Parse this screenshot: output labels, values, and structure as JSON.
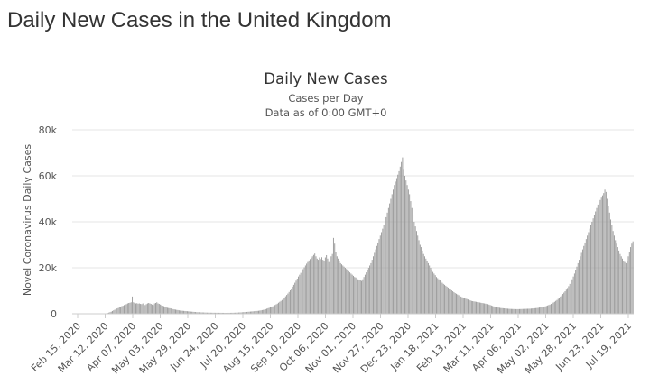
{
  "page": {
    "heading": "Daily New Cases in the United Kingdom"
  },
  "chart_data": {
    "type": "bar",
    "title": "Daily New Cases",
    "subtitle_lines": [
      "Cases per Day",
      "Data as of 0:00 GMT+0"
    ],
    "ylabel": "Novel Coronavirus Daily Cases",
    "xlabel": "",
    "ylim": [
      0,
      80000
    ],
    "yticks": [
      0,
      20000,
      40000,
      60000,
      80000
    ],
    "ytick_labels": [
      "0",
      "20k",
      "40k",
      "60k",
      "80k"
    ],
    "xtick_labels": [
      "Feb 15, 2020",
      "Mar 12, 2020",
      "Apr 07, 2020",
      "May 03, 2020",
      "May 29, 2020",
      "Jun 24, 2020",
      "Jul 20, 2020",
      "Aug 15, 2020",
      "Sep 10, 2020",
      "Oct 06, 2020",
      "Nov 01, 2020",
      "Nov 27, 2020",
      "Dec 23, 2020",
      "Jan 18, 2021",
      "Feb 13, 2021",
      "Mar 11, 2021",
      "Apr 06, 2021",
      "May 02, 2021",
      "May 28, 2021",
      "Jun 23, 2021",
      "Jul 19, 2021"
    ],
    "grid": true,
    "legend": false,
    "bar_color": "#999999",
    "x_start": "2020-02-15",
    "x_end": "2021-08-05",
    "values": [
      0,
      0,
      0,
      0,
      0,
      0,
      0,
      0,
      0,
      0,
      0,
      0,
      0,
      0,
      0,
      0,
      0,
      0,
      0,
      0,
      0,
      0,
      0,
      0,
      0,
      0,
      0,
      100,
      150,
      200,
      300,
      500,
      700,
      900,
      1200,
      1500,
      1800,
      2000,
      2300,
      2500,
      2800,
      3000,
      3300,
      3500,
      3800,
      4000,
      4200,
      4500,
      4700,
      4800,
      5000,
      7500,
      5000,
      4700,
      4500,
      4600,
      4400,
      4500,
      4300,
      4200,
      4500,
      4000,
      3800,
      4200,
      4500,
      4700,
      4500,
      4300,
      4000,
      3800,
      4500,
      4700,
      5000,
      4500,
      4300,
      4000,
      3700,
      3500,
      3300,
      3000,
      2800,
      2600,
      2500,
      2400,
      2300,
      2100,
      2000,
      1900,
      1800,
      1700,
      1600,
      1500,
      1400,
      1350,
      1300,
      1250,
      1200,
      1150,
      1100,
      1050,
      1000,
      950,
      900,
      850,
      800,
      750,
      700,
      680,
      650,
      630,
      600,
      580,
      560,
      540,
      520,
      500,
      490,
      480,
      470,
      460,
      450,
      450,
      440,
      440,
      430,
      430,
      420,
      420,
      410,
      410,
      400,
      400,
      400,
      410,
      410,
      420,
      430,
      440,
      450,
      470,
      490,
      510,
      540,
      570,
      600,
      640,
      680,
      720,
      760,
      800,
      850,
      900,
      950,
      1000,
      1050,
      1100,
      1150,
      1200,
      1250,
      1300,
      1400,
      1500,
      1600,
      1700,
      1800,
      2000,
      2200,
      2400,
      2600,
      2800,
      3000,
      3200,
      3500,
      3800,
      4100,
      4400,
      4800,
      5200,
      5600,
      6000,
      6500,
      7000,
      7600,
      8200,
      8800,
      9500,
      10200,
      11000,
      11800,
      12600,
      13500,
      14400,
      15300,
      16200,
      17000,
      17800,
      18600,
      19400,
      20200,
      21000,
      21800,
      22500,
      23200,
      23800,
      24400,
      25000,
      25600,
      26200,
      25000,
      24000,
      23500,
      24500,
      23800,
      24600,
      23500,
      22800,
      24500,
      25500,
      24000,
      22500,
      23500,
      25000,
      26000,
      33000,
      30500,
      27000,
      25000,
      24000,
      23000,
      22000,
      21500,
      21000,
      20500,
      20000,
      19500,
      19000,
      18500,
      18000,
      17500,
      17000,
      16500,
      16000,
      15800,
      15500,
      15000,
      14700,
      14500,
      14300,
      15000,
      16000,
      17000,
      18000,
      19000,
      20000,
      21000,
      22000,
      23500,
      25000,
      26500,
      28000,
      29500,
      31000,
      32500,
      34000,
      35500,
      37000,
      38500,
      40000,
      42000,
      44000,
      46000,
      48000,
      50000,
      52000,
      54000,
      56000,
      57500,
      59000,
      60500,
      62000,
      64000,
      66000,
      68000,
      63000,
      60000,
      58000,
      56000,
      54000,
      52000,
      49000,
      46000,
      43000,
      40000,
      38000,
      36000,
      34000,
      32000,
      30000,
      29000,
      27500,
      26000,
      25000,
      24000,
      23000,
      22000,
      21000,
      20000,
      19000,
      18200,
      17500,
      16800,
      16000,
      15500,
      15000,
      14500,
      14000,
      13500,
      13000,
      12600,
      12200,
      11800,
      11400,
      11000,
      10600,
      10200,
      9800,
      9400,
      9000,
      8700,
      8400,
      8100,
      7800,
      7500,
      7200,
      7000,
      6800,
      6600,
      6400,
      6200,
      6000,
      5800,
      5600,
      5500,
      5400,
      5300,
      5200,
      5100,
      5000,
      4900,
      4800,
      4700,
      4600,
      4500,
      4400,
      4300,
      4200,
      4000,
      3800,
      3600,
      3400,
      3200,
      3000,
      2900,
      2800,
      2700,
      2600,
      2500,
      2450,
      2400,
      2350,
      2300,
      2250,
      2200,
      2150,
      2100,
      2080,
      2060,
      2040,
      2020,
      2000,
      2000,
      2000,
      2020,
      2040,
      2060,
      2080,
      2100,
      2120,
      2140,
      2160,
      2180,
      2200,
      2250,
      2300,
      2350,
      2400,
      2450,
      2500,
      2600,
      2700,
      2800,
      2900,
      3000,
      3100,
      3200,
      3400,
      3600,
      3800,
      4000,
      4300,
      4600,
      4900,
      5200,
      5600,
      6000,
      6500,
      7000,
      7500,
      8000,
      8600,
      9200,
      9800,
      10500,
      11200,
      12000,
      13000,
      14000,
      15000,
      16200,
      17500,
      19000,
      20500,
      22000,
      23500,
      25000,
      26500,
      28000,
      29500,
      31000,
      32500,
      34000,
      35500,
      37000,
      38500,
      40000,
      41500,
      43000,
      44500,
      46000,
      47500,
      48500,
      49500,
      50500,
      51500,
      52500,
      54000,
      53000,
      50000,
      47000,
      44000,
      41000,
      38500,
      36000,
      34000,
      32000,
      30500,
      29000,
      27500,
      26000,
      25000,
      24000,
      23000,
      22500,
      22000,
      23000,
      25000,
      27000,
      29000,
      30500,
      31500
    ]
  }
}
